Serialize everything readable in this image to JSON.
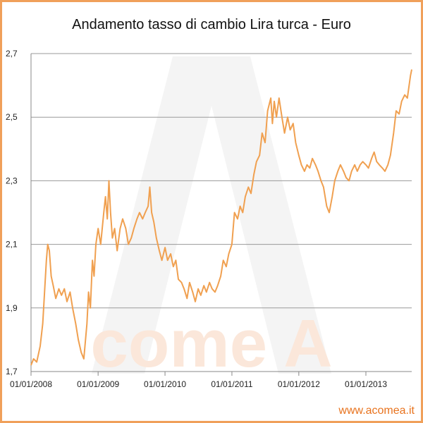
{
  "title": "Andamento tasso di cambio Lira turca - Euro",
  "watermark": {
    "logo": "A",
    "brand": "come A"
  },
  "url": "www.acomea.it",
  "colors": {
    "line": "#f0a050",
    "border": "#f0a05a",
    "grid": "#999999",
    "url": "#e8731e"
  },
  "chart_data": {
    "type": "line",
    "title": "Andamento tasso di cambio Lira turca - Euro",
    "xlabel": "",
    "ylabel": "",
    "ylim": [
      1.7,
      2.7
    ],
    "yticks": [
      "1,7",
      "1,9",
      "2,1",
      "2,3",
      "2,5",
      "2,7"
    ],
    "xticks": [
      "01/01/2008",
      "01/01/2009",
      "01/01/2010",
      "01/01/2011",
      "01/01/2012",
      "01/01/2013"
    ],
    "grid": "horizontal",
    "series": [
      {
        "values": [
          [
            "2008-01-01",
            1.72
          ],
          [
            "2008-01-15",
            1.74
          ],
          [
            "2008-02-01",
            1.73
          ],
          [
            "2008-02-20",
            1.78
          ],
          [
            "2008-03-05",
            1.85
          ],
          [
            "2008-03-15",
            1.95
          ],
          [
            "2008-03-25",
            2.05
          ],
          [
            "2008-04-01",
            2.1
          ],
          [
            "2008-04-10",
            2.08
          ],
          [
            "2008-04-20",
            2.0
          ],
          [
            "2008-05-01",
            1.97
          ],
          [
            "2008-05-15",
            1.93
          ],
          [
            "2008-06-01",
            1.96
          ],
          [
            "2008-06-15",
            1.94
          ],
          [
            "2008-07-01",
            1.96
          ],
          [
            "2008-07-15",
            1.92
          ],
          [
            "2008-08-01",
            1.95
          ],
          [
            "2008-08-15",
            1.9
          ],
          [
            "2008-09-01",
            1.85
          ],
          [
            "2008-09-15",
            1.8
          ],
          [
            "2008-10-01",
            1.76
          ],
          [
            "2008-10-15",
            1.74
          ],
          [
            "2008-11-01",
            1.85
          ],
          [
            "2008-11-10",
            1.95
          ],
          [
            "2008-11-20",
            1.9
          ],
          [
            "2008-12-01",
            2.05
          ],
          [
            "2008-12-10",
            2.0
          ],
          [
            "2008-12-20",
            2.1
          ],
          [
            "2009-01-01",
            2.15
          ],
          [
            "2009-01-15",
            2.1
          ],
          [
            "2009-02-01",
            2.2
          ],
          [
            "2009-02-10",
            2.25
          ],
          [
            "2009-02-20",
            2.18
          ],
          [
            "2009-03-01",
            2.3
          ],
          [
            "2009-03-10",
            2.2
          ],
          [
            "2009-03-20",
            2.12
          ],
          [
            "2009-04-01",
            2.15
          ],
          [
            "2009-04-15",
            2.08
          ],
          [
            "2009-05-01",
            2.15
          ],
          [
            "2009-05-15",
            2.18
          ],
          [
            "2009-06-01",
            2.15
          ],
          [
            "2009-06-15",
            2.1
          ],
          [
            "2009-07-01",
            2.12
          ],
          [
            "2009-07-15",
            2.15
          ],
          [
            "2009-08-01",
            2.18
          ],
          [
            "2009-08-15",
            2.2
          ],
          [
            "2009-09-01",
            2.18
          ],
          [
            "2009-09-15",
            2.2
          ],
          [
            "2009-10-01",
            2.22
          ],
          [
            "2009-10-10",
            2.28
          ],
          [
            "2009-10-20",
            2.2
          ],
          [
            "2009-11-01",
            2.17
          ],
          [
            "2009-11-15",
            2.12
          ],
          [
            "2009-12-01",
            2.08
          ],
          [
            "2009-12-15",
            2.05
          ],
          [
            "2010-01-01",
            2.09
          ],
          [
            "2010-01-15",
            2.05
          ],
          [
            "2010-02-01",
            2.07
          ],
          [
            "2010-02-15",
            2.03
          ],
          [
            "2010-03-01",
            2.05
          ],
          [
            "2010-03-15",
            1.99
          ],
          [
            "2010-04-01",
            1.98
          ],
          [
            "2010-04-15",
            1.96
          ],
          [
            "2010-05-01",
            1.93
          ],
          [
            "2010-05-15",
            1.98
          ],
          [
            "2010-06-01",
            1.95
          ],
          [
            "2010-06-15",
            1.92
          ],
          [
            "2010-07-01",
            1.96
          ],
          [
            "2010-07-15",
            1.94
          ],
          [
            "2010-08-01",
            1.97
          ],
          [
            "2010-08-15",
            1.95
          ],
          [
            "2010-09-01",
            1.98
          ],
          [
            "2010-09-15",
            1.96
          ],
          [
            "2010-10-01",
            1.95
          ],
          [
            "2010-10-15",
            1.97
          ],
          [
            "2010-11-01",
            2.0
          ],
          [
            "2010-11-15",
            2.05
          ],
          [
            "2010-12-01",
            2.03
          ],
          [
            "2010-12-15",
            2.07
          ],
          [
            "2011-01-01",
            2.1
          ],
          [
            "2011-01-15",
            2.2
          ],
          [
            "2011-02-01",
            2.18
          ],
          [
            "2011-02-15",
            2.22
          ],
          [
            "2011-03-01",
            2.2
          ],
          [
            "2011-03-15",
            2.25
          ],
          [
            "2011-04-01",
            2.28
          ],
          [
            "2011-04-15",
            2.26
          ],
          [
            "2011-05-01",
            2.32
          ],
          [
            "2011-05-15",
            2.36
          ],
          [
            "2011-06-01",
            2.38
          ],
          [
            "2011-06-15",
            2.45
          ],
          [
            "2011-07-01",
            2.42
          ],
          [
            "2011-07-15",
            2.52
          ],
          [
            "2011-08-01",
            2.56
          ],
          [
            "2011-08-10",
            2.48
          ],
          [
            "2011-08-20",
            2.55
          ],
          [
            "2011-09-01",
            2.5
          ],
          [
            "2011-09-15",
            2.56
          ],
          [
            "2011-10-01",
            2.5
          ],
          [
            "2011-10-15",
            2.45
          ],
          [
            "2011-11-01",
            2.5
          ],
          [
            "2011-11-15",
            2.46
          ],
          [
            "2011-12-01",
            2.48
          ],
          [
            "2011-12-15",
            2.42
          ],
          [
            "2012-01-01",
            2.38
          ],
          [
            "2012-01-15",
            2.35
          ],
          [
            "2012-02-01",
            2.33
          ],
          [
            "2012-02-15",
            2.35
          ],
          [
            "2012-03-01",
            2.34
          ],
          [
            "2012-03-15",
            2.37
          ],
          [
            "2012-04-01",
            2.35
          ],
          [
            "2012-04-15",
            2.33
          ],
          [
            "2012-05-01",
            2.3
          ],
          [
            "2012-05-15",
            2.28
          ],
          [
            "2012-06-01",
            2.22
          ],
          [
            "2012-06-15",
            2.2
          ],
          [
            "2012-07-01",
            2.25
          ],
          [
            "2012-07-15",
            2.3
          ],
          [
            "2012-08-01",
            2.33
          ],
          [
            "2012-08-15",
            2.35
          ],
          [
            "2012-09-01",
            2.33
          ],
          [
            "2012-09-15",
            2.31
          ],
          [
            "2012-10-01",
            2.3
          ],
          [
            "2012-10-15",
            2.33
          ],
          [
            "2012-11-01",
            2.35
          ],
          [
            "2012-11-15",
            2.33
          ],
          [
            "2012-12-01",
            2.35
          ],
          [
            "2012-12-15",
            2.36
          ],
          [
            "2013-01-01",
            2.35
          ],
          [
            "2013-01-15",
            2.34
          ],
          [
            "2013-02-01",
            2.37
          ],
          [
            "2013-02-15",
            2.39
          ],
          [
            "2013-03-01",
            2.36
          ],
          [
            "2013-03-15",
            2.35
          ],
          [
            "2013-04-01",
            2.34
          ],
          [
            "2013-04-15",
            2.33
          ],
          [
            "2013-05-01",
            2.35
          ],
          [
            "2013-05-15",
            2.38
          ],
          [
            "2013-06-01",
            2.45
          ],
          [
            "2013-06-15",
            2.52
          ],
          [
            "2013-07-01",
            2.51
          ],
          [
            "2013-07-15",
            2.55
          ],
          [
            "2013-08-01",
            2.57
          ],
          [
            "2013-08-15",
            2.56
          ],
          [
            "2013-09-01",
            2.63
          ],
          [
            "2013-09-08",
            2.65
          ]
        ]
      }
    ]
  }
}
